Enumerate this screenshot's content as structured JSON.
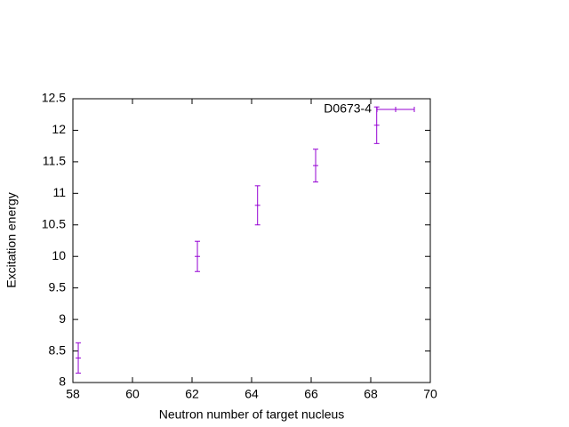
{
  "chart_data": {
    "type": "scatter",
    "xlabel": "Neutron number of target nucleus",
    "ylabel": "Excitation energy",
    "xlim": [
      58,
      70
    ],
    "xticks": [
      58,
      60,
      62,
      64,
      66,
      68,
      70
    ],
    "ylim": [
      8,
      12.5
    ],
    "yticks": [
      8,
      8.5,
      9,
      9.5,
      10,
      10.5,
      11,
      11.5,
      12,
      12.5
    ],
    "legend": "top-right",
    "series": [
      {
        "name": "D0673-4",
        "color": "#9400d3",
        "x": [
          58.18,
          62.18,
          64.2,
          66.15,
          68.2
        ],
        "values": [
          8.39,
          10.0,
          10.81,
          11.44,
          12.08
        ],
        "errors": [
          0.24,
          0.24,
          0.31,
          0.26,
          0.29
        ]
      }
    ]
  }
}
